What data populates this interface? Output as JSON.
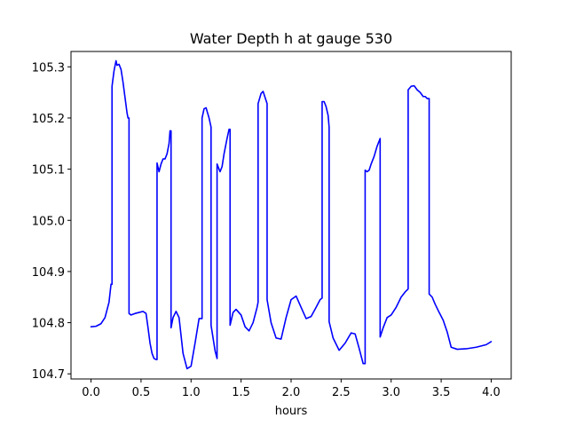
{
  "chart_data": {
    "type": "line",
    "title": "Water Depth h at gauge 530",
    "xlabel": "hours",
    "ylabel": "",
    "xlim": [
      -0.2,
      4.2
    ],
    "ylim": [
      104.69,
      105.33
    ],
    "xticks": [
      0.0,
      0.5,
      1.0,
      1.5,
      2.0,
      2.5,
      3.0,
      3.5,
      4.0
    ],
    "xtick_labels": [
      "0.0",
      "0.5",
      "1.0",
      "1.5",
      "2.0",
      "2.5",
      "3.0",
      "3.5",
      "4.0"
    ],
    "yticks": [
      104.7,
      104.8,
      104.9,
      105.0,
      105.1,
      105.2,
      105.3
    ],
    "ytick_labels": [
      "104.7",
      "104.8",
      "104.9",
      "105.0",
      "105.1",
      "105.2",
      "105.3"
    ],
    "grid": false,
    "series": [
      {
        "color": "#0000ff",
        "x": [
          0.0,
          0.05,
          0.1,
          0.14,
          0.18,
          0.2,
          0.21,
          0.21,
          0.23,
          0.25,
          0.26,
          0.28,
          0.3,
          0.32,
          0.34,
          0.36,
          0.37,
          0.38,
          0.38,
          0.4,
          0.44,
          0.48,
          0.52,
          0.55,
          0.57,
          0.59,
          0.61,
          0.63,
          0.65,
          0.66,
          0.66,
          0.68,
          0.7,
          0.72,
          0.74,
          0.76,
          0.78,
          0.79,
          0.8,
          0.8,
          0.82,
          0.85,
          0.88,
          0.92,
          0.96,
          1.0,
          1.04,
          1.08,
          1.11,
          1.11,
          1.13,
          1.15,
          1.18,
          1.2,
          1.2,
          1.22,
          1.24,
          1.26,
          1.26,
          1.27,
          1.29,
          1.31,
          1.33,
          1.36,
          1.38,
          1.39,
          1.39,
          1.42,
          1.45,
          1.5,
          1.54,
          1.58,
          1.62,
          1.66,
          1.67,
          1.67,
          1.7,
          1.72,
          1.74,
          1.76,
          1.76,
          1.8,
          1.85,
          1.9,
          1.95,
          2.0,
          2.05,
          2.1,
          2.15,
          2.2,
          2.25,
          2.29,
          2.31,
          2.31,
          2.33,
          2.35,
          2.37,
          2.38,
          2.38,
          2.42,
          2.48,
          2.54,
          2.6,
          2.64,
          2.68,
          2.72,
          2.74,
          2.74,
          2.76,
          2.78,
          2.8,
          2.83,
          2.86,
          2.89,
          2.89,
          2.92,
          2.96,
          3.0,
          3.05,
          3.1,
          3.14,
          3.17,
          3.17,
          3.2,
          3.23,
          3.26,
          3.29,
          3.32,
          3.34,
          3.36,
          3.38,
          3.38,
          3.41,
          3.44,
          3.48,
          3.52,
          3.56,
          3.6,
          3.66,
          3.75,
          3.85,
          3.95,
          4.0
        ],
        "y": [
          104.792,
          104.793,
          104.798,
          104.81,
          104.84,
          104.875,
          104.875,
          105.262,
          105.292,
          105.312,
          105.303,
          105.305,
          105.295,
          105.27,
          105.24,
          105.21,
          105.2,
          105.2,
          104.818,
          104.815,
          104.818,
          104.82,
          104.822,
          104.818,
          104.79,
          104.76,
          104.74,
          104.73,
          104.728,
          104.728,
          105.112,
          105.095,
          105.11,
          105.12,
          105.12,
          105.13,
          105.15,
          105.175,
          105.175,
          104.79,
          104.81,
          104.822,
          104.81,
          104.74,
          104.71,
          104.715,
          104.76,
          104.808,
          104.808,
          105.2,
          105.218,
          105.22,
          105.2,
          105.182,
          104.795,
          104.77,
          104.745,
          104.73,
          105.11,
          105.105,
          105.095,
          105.105,
          105.13,
          105.16,
          105.178,
          105.178,
          104.795,
          104.82,
          104.826,
          104.815,
          104.792,
          104.784,
          104.8,
          104.83,
          104.84,
          105.228,
          105.248,
          105.252,
          105.24,
          105.228,
          104.845,
          104.8,
          104.77,
          104.768,
          104.81,
          104.845,
          104.852,
          104.83,
          104.808,
          104.812,
          104.83,
          104.845,
          104.848,
          105.232,
          105.232,
          105.222,
          105.205,
          105.182,
          104.802,
          104.77,
          104.746,
          104.76,
          104.78,
          104.778,
          104.75,
          104.72,
          104.72,
          105.098,
          105.095,
          105.098,
          105.11,
          105.125,
          105.145,
          105.16,
          104.772,
          104.79,
          104.81,
          104.815,
          104.83,
          104.85,
          104.86,
          104.866,
          105.255,
          105.262,
          105.263,
          105.255,
          105.25,
          105.242,
          105.242,
          105.238,
          105.238,
          104.856,
          104.85,
          104.836,
          104.82,
          104.805,
          104.782,
          104.752,
          104.748,
          104.749,
          104.752,
          104.757,
          104.763
        ]
      }
    ]
  }
}
